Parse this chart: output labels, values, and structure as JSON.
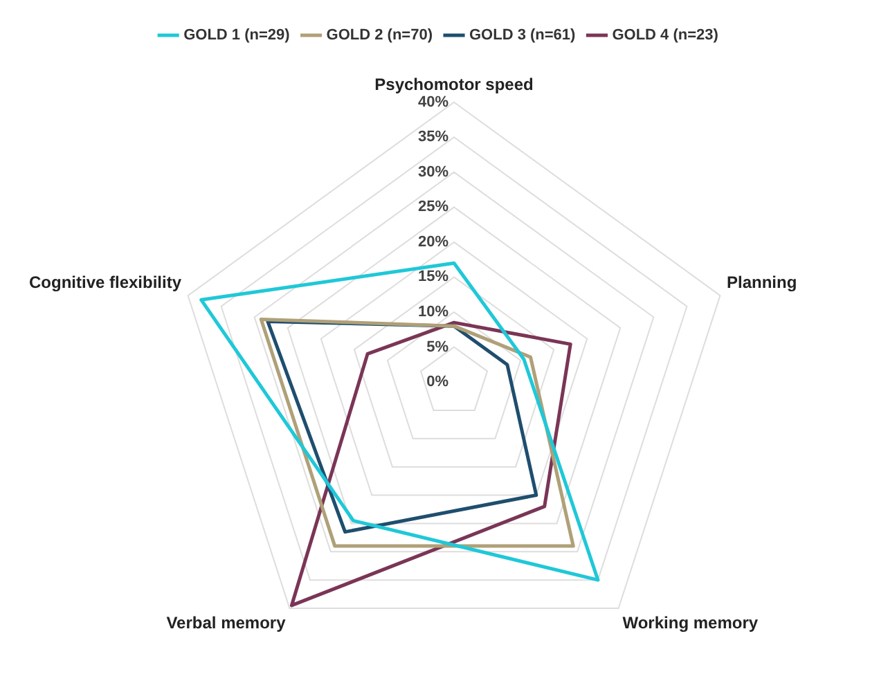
{
  "chart_data": {
    "type": "radar",
    "categories": [
      "Psychomotor speed",
      "Planning",
      "Working memory",
      "Verbal memory",
      "Cognitive flexibility"
    ],
    "series": [
      {
        "name": "GOLD 1 (n=29)",
        "color": "#1fc8d8",
        "values": [
          17,
          10.5,
          35,
          24.5,
          38
        ]
      },
      {
        "name": "GOLD 2 (n=70)",
        "color": "#b0a078",
        "values": [
          8,
          11.5,
          29,
          29,
          29
        ]
      },
      {
        "name": "GOLD 3 (n=61)",
        "color": "#1f4e6e",
        "values": [
          8,
          8,
          20,
          26.5,
          28
        ]
      },
      {
        "name": "GOLD 4 (n=23)",
        "color": "#7a3556",
        "values": [
          8.5,
          17.5,
          22,
          39.5,
          13
        ]
      }
    ],
    "ylim": [
      0,
      40
    ],
    "yticks": [
      {
        "value": 0,
        "label": "0%"
      },
      {
        "value": 5,
        "label": "5%"
      },
      {
        "value": 10,
        "label": "10%"
      },
      {
        "value": 15,
        "label": "15%"
      },
      {
        "value": 20,
        "label": "20%"
      },
      {
        "value": 25,
        "label": "25%"
      },
      {
        "value": 30,
        "label": "30%"
      },
      {
        "value": 35,
        "label": "35%"
      },
      {
        "value": 40,
        "label": "40%"
      }
    ],
    "grid": true,
    "legend": "top",
    "marker": "none",
    "line_style": "solid"
  }
}
